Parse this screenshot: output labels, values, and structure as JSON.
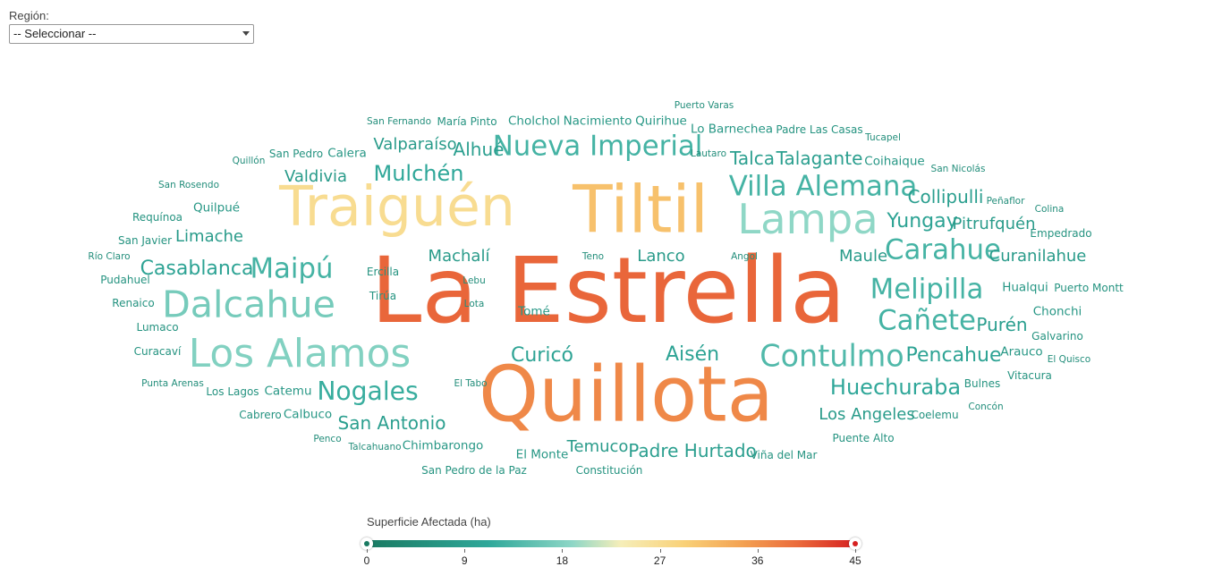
{
  "filter": {
    "label": "Región:",
    "value": "-- Seleccionar --"
  },
  "colors": {
    "scale": [
      "#1a7a62",
      "#2fa89a",
      "#8dd6c6",
      "#f6eeb9",
      "#f9d178",
      "#f3a152",
      "#eb6c3c",
      "#d62020"
    ]
  },
  "chart_data": {
    "type": "wordcloud",
    "value_label": "Superficie Afectada (ha)",
    "range": [
      0,
      45
    ],
    "ticks": [
      "0",
      "9",
      "18",
      "27",
      "36",
      "45"
    ],
    "words": [
      {
        "text": "La Estrella",
        "value": 40
      },
      {
        "text": "Quillota",
        "value": 37
      },
      {
        "text": "Tiltil",
        "value": 31
      },
      {
        "text": "Traiguén",
        "value": 27
      },
      {
        "text": "Lampa",
        "value": 19
      },
      {
        "text": "Los Alamos",
        "value": 18
      },
      {
        "text": "Dalcahue",
        "value": 17
      },
      {
        "text": "Contulmo",
        "value": 14
      },
      {
        "text": "Melipilla",
        "value": 13
      },
      {
        "text": "Maipú",
        "value": 13
      },
      {
        "text": "Villa Alemana",
        "value": 13
      },
      {
        "text": "Nueva Imperial",
        "value": 13
      },
      {
        "text": "Carahue",
        "value": 13
      },
      {
        "text": "Cañete",
        "value": 13
      },
      {
        "text": "Nogales",
        "value": 12
      },
      {
        "text": "Huechuraba",
        "value": 11
      },
      {
        "text": "Mulchén",
        "value": 11
      },
      {
        "text": "Casablanca",
        "value": 10
      },
      {
        "text": "Pencahue",
        "value": 10
      },
      {
        "text": "Yungay",
        "value": 10
      },
      {
        "text": "Curicó",
        "value": 10
      },
      {
        "text": "Aisén",
        "value": 10
      },
      {
        "text": "San Antonio",
        "value": 9
      },
      {
        "text": "Padre Hurtado",
        "value": 9
      },
      {
        "text": "Talca",
        "value": 9
      },
      {
        "text": "Talagante",
        "value": 9
      },
      {
        "text": "Collipulli",
        "value": 9
      },
      {
        "text": "Los Angeles",
        "value": 8
      },
      {
        "text": "Purén",
        "value": 9
      },
      {
        "text": "Alhué",
        "value": 9
      },
      {
        "text": "Valdivia",
        "value": 8
      },
      {
        "text": "Limache",
        "value": 8
      },
      {
        "text": "Machalí",
        "value": 8
      },
      {
        "text": "Valparaíso",
        "value": 8
      },
      {
        "text": "Pitrufquén",
        "value": 8
      },
      {
        "text": "Lanco",
        "value": 8
      },
      {
        "text": "Maule",
        "value": 8
      },
      {
        "text": "Curanilahue",
        "value": 8
      },
      {
        "text": "Temuco",
        "value": 8
      },
      {
        "text": "El Monte",
        "value": 7
      },
      {
        "text": "Tomé",
        "value": 7
      },
      {
        "text": "Catemu",
        "value": 7
      },
      {
        "text": "Calbuco",
        "value": 7
      },
      {
        "text": "Quilpué",
        "value": 7
      },
      {
        "text": "Chimbarongo",
        "value": 7
      },
      {
        "text": "Hualqui",
        "value": 7
      },
      {
        "text": "Calera",
        "value": 7
      },
      {
        "text": "Chonchi",
        "value": 7
      },
      {
        "text": "Arauco",
        "value": 7
      },
      {
        "text": "Cholchol",
        "value": 7
      },
      {
        "text": "Nacimiento",
        "value": 7
      },
      {
        "text": "Quirihue",
        "value": 7
      },
      {
        "text": "Lo Barnechea",
        "value": 7
      },
      {
        "text": "Coihaique",
        "value": 7
      },
      {
        "text": "Ercilla",
        "value": 6
      },
      {
        "text": "Tirúa",
        "value": 6
      },
      {
        "text": "Bulnes",
        "value": 6
      },
      {
        "text": "María Pinto",
        "value": 6
      },
      {
        "text": "Puente Alto",
        "value": 6
      },
      {
        "text": "Lumaco",
        "value": 6
      },
      {
        "text": "Curacaví",
        "value": 6
      },
      {
        "text": "Los Lagos",
        "value": 6
      },
      {
        "text": "Padre Las Casas",
        "value": 6
      },
      {
        "text": "Galvarino",
        "value": 6
      },
      {
        "text": "Coelemu",
        "value": 6
      },
      {
        "text": "Empedrado",
        "value": 6
      },
      {
        "text": "Renaico",
        "value": 6
      },
      {
        "text": "Cabrero",
        "value": 6
      },
      {
        "text": "San Pedro",
        "value": 6
      },
      {
        "text": "Requínoa",
        "value": 6
      },
      {
        "text": "San Javier",
        "value": 6
      },
      {
        "text": "Pudahuel",
        "value": 6
      },
      {
        "text": "Puerto Montt",
        "value": 6
      },
      {
        "text": "Vitacura",
        "value": 6
      },
      {
        "text": "Viña del Mar",
        "value": 6
      },
      {
        "text": "Constitución",
        "value": 6
      },
      {
        "text": "San Pedro de la Paz",
        "value": 6
      },
      {
        "text": "Talcahuano",
        "value": 5
      },
      {
        "text": "Penco",
        "value": 5
      },
      {
        "text": "Punta Arenas",
        "value": 5
      },
      {
        "text": "El Tabo",
        "value": 5
      },
      {
        "text": "Lota",
        "value": 5
      },
      {
        "text": "Lebu",
        "value": 5
      },
      {
        "text": "Teno",
        "value": 5
      },
      {
        "text": "Angol",
        "value": 5
      },
      {
        "text": "Río Claro",
        "value": 5
      },
      {
        "text": "San Rosendo",
        "value": 5
      },
      {
        "text": "Quillón",
        "value": 5
      },
      {
        "text": "San Fernando",
        "value": 5
      },
      {
        "text": "Lautaro",
        "value": 5
      },
      {
        "text": "Puerto Varas",
        "value": 5
      },
      {
        "text": "Tucapel",
        "value": 5
      },
      {
        "text": "San Nicolás",
        "value": 5
      },
      {
        "text": "Peñaflor",
        "value": 5
      },
      {
        "text": "Colina",
        "value": 5
      },
      {
        "text": "Concón",
        "value": 5
      },
      {
        "text": "El Quisco",
        "value": 5
      }
    ]
  }
}
